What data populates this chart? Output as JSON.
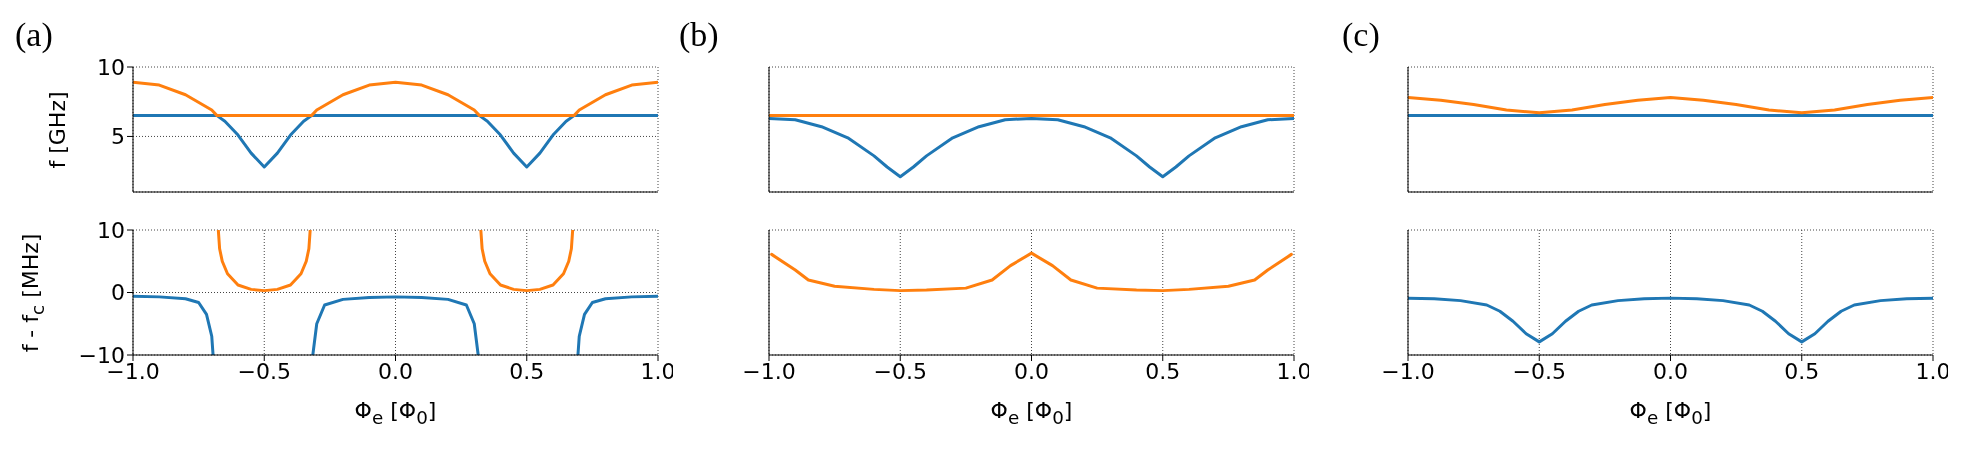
{
  "chart_data": [
    {
      "type": "line",
      "title": "(a)",
      "ylabel": "f [GHz]",
      "x": [
        -1,
        -0.9,
        -0.8,
        -0.7,
        -0.68,
        -0.65,
        -0.6,
        -0.55,
        -0.5,
        -0.45,
        -0.4,
        -0.35,
        -0.32,
        -0.3,
        -0.2,
        -0.1,
        0,
        0.1,
        0.2,
        0.3,
        0.32,
        0.35,
        0.4,
        0.45,
        0.5,
        0.55,
        0.6,
        0.65,
        0.68,
        0.7,
        0.8,
        0.9,
        1
      ],
      "series": [
        {
          "color": "#1f77b4",
          "values": [
            6.5,
            6.5,
            6.5,
            6.5,
            6.5,
            6.1,
            5.1,
            3.8,
            2.8,
            3.8,
            5.1,
            6.1,
            6.5,
            6.5,
            6.5,
            6.5,
            6.5,
            6.5,
            6.5,
            6.5,
            6.5,
            6.1,
            5.1,
            3.8,
            2.8,
            3.8,
            5.1,
            6.1,
            6.5,
            6.5,
            6.5,
            6.5,
            6.5
          ]
        },
        {
          "color": "#ff7f0e",
          "values": [
            8.9,
            8.7,
            8.0,
            6.9,
            6.5,
            6.5,
            6.5,
            6.5,
            6.5,
            6.5,
            6.5,
            6.5,
            6.5,
            6.9,
            8.0,
            8.7,
            8.9,
            8.7,
            8.0,
            6.9,
            6.5,
            6.5,
            6.5,
            6.5,
            6.5,
            6.5,
            6.5,
            6.5,
            6.5,
            6.9,
            8.0,
            8.7,
            8.9
          ]
        }
      ],
      "xlim": [
        -1,
        1
      ],
      "xticks": [
        -1,
        -0.5,
        0,
        0.5,
        1
      ],
      "ylim": [
        1,
        10
      ],
      "yticks": [
        5,
        10
      ],
      "grid": true,
      "tick_labels": "y"
    },
    {
      "type": "line",
      "title": "(b)",
      "x": [
        -1,
        -0.9,
        -0.8,
        -0.7,
        -0.6,
        -0.55,
        -0.5,
        -0.45,
        -0.4,
        -0.3,
        -0.2,
        -0.1,
        0,
        0.1,
        0.2,
        0.3,
        0.4,
        0.45,
        0.5,
        0.55,
        0.6,
        0.7,
        0.8,
        0.9,
        1
      ],
      "series": [
        {
          "color": "#1f77b4",
          "values": [
            6.3,
            6.2,
            5.7,
            4.9,
            3.6,
            2.8,
            2.1,
            2.8,
            3.6,
            4.9,
            5.7,
            6.2,
            6.3,
            6.2,
            5.7,
            4.9,
            3.6,
            2.8,
            2.1,
            2.8,
            3.6,
            4.9,
            5.7,
            6.2,
            6.3
          ]
        },
        {
          "color": "#ff7f0e",
          "x": [
            -1,
            1
          ],
          "values": [
            6.5,
            6.5
          ]
        }
      ],
      "xlim": [
        -1,
        1
      ],
      "xticks": [
        -1,
        -0.5,
        0,
        0.5,
        1
      ],
      "ylim": [
        1,
        10
      ],
      "yticks": [
        5,
        10
      ],
      "grid": true,
      "tick_labels": false
    },
    {
      "type": "line",
      "title": "(c)",
      "x": [
        -1,
        -0.875,
        -0.75,
        -0.625,
        -0.5,
        -0.375,
        -0.25,
        -0.125,
        0,
        0.125,
        0.25,
        0.375,
        0.5,
        0.625,
        0.75,
        0.875,
        1
      ],
      "series": [
        {
          "color": "#1f77b4",
          "x": [
            -1,
            1
          ],
          "values": [
            6.5,
            6.5
          ]
        },
        {
          "color": "#ff7f0e",
          "values": [
            7.8,
            7.6,
            7.3,
            6.9,
            6.7,
            6.9,
            7.3,
            7.6,
            7.8,
            7.6,
            7.3,
            6.9,
            6.7,
            6.9,
            7.3,
            7.6,
            7.8
          ]
        }
      ],
      "xlim": [
        -1,
        1
      ],
      "xticks": [
        -1,
        -0.5,
        0,
        0.5,
        1
      ],
      "ylim": [
        1,
        10
      ],
      "yticks": [
        5,
        10
      ],
      "grid": true,
      "tick_labels": false
    },
    {
      "type": "line",
      "ylabel": "f - f$_{c}$ [MHz]",
      "xlabel": "Φ$_{e}$ [Φ$_{0}$]",
      "series": [
        {
          "color": "#1f77b4",
          "x": [
            -1,
            -0.9,
            -0.8,
            -0.75,
            -0.72,
            -0.7,
            -0.695,
            -0.5,
            -0.315,
            -0.3,
            -0.27,
            -0.2,
            -0.1,
            0,
            0.1,
            0.2,
            0.27,
            0.3,
            0.315,
            0.5,
            0.695,
            0.7,
            0.72,
            0.75,
            0.8,
            0.9,
            1
          ],
          "values": [
            -0.6,
            -0.7,
            -1.0,
            -1.6,
            -3.5,
            -7,
            -10,
            null,
            -10,
            -5,
            -2,
            -1.1,
            -0.8,
            -0.7,
            -0.8,
            -1.1,
            -2,
            -5,
            -10,
            null,
            -10,
            -7,
            -3.5,
            -1.6,
            -1.0,
            -0.7,
            -0.6
          ]
        },
        {
          "color": "#ff7f0e",
          "x": [
            -0.675,
            -0.67,
            -0.66,
            -0.64,
            -0.6,
            -0.55,
            -0.5,
            -0.45,
            -0.4,
            -0.36,
            -0.34,
            -0.33,
            -0.325,
            0,
            0.325,
            0.33,
            0.34,
            0.36,
            0.4,
            0.45,
            0.5,
            0.55,
            0.6,
            0.64,
            0.66,
            0.67,
            0.675
          ],
          "values": [
            10,
            7,
            5,
            3,
            1.2,
            0.5,
            0.3,
            0.5,
            1.2,
            3,
            5,
            7,
            10,
            null,
            10,
            7,
            5,
            3,
            1.2,
            0.5,
            0.3,
            0.5,
            1.2,
            3,
            5,
            7,
            10
          ]
        }
      ],
      "xlim": [
        -1,
        1
      ],
      "xticks": [
        {
          "value": -1,
          "label": "−1.0"
        },
        {
          "value": -0.5,
          "label": "−0.5"
        },
        {
          "value": 0,
          "label": "0.0"
        },
        0.5,
        {
          "value": 1,
          "label": "1.0"
        }
      ],
      "ylim": [
        -10,
        10
      ],
      "yticks": [
        {
          "value": -10,
          "label": "−10"
        },
        0,
        10
      ],
      "grid": true
    },
    {
      "type": "line",
      "xlabel": "Φ$_{e}$ [Φ$_{0}$]",
      "series": [
        {
          "color": "#ff7f0e",
          "x": [
            -0.99,
            -0.9,
            -0.85,
            -0.75,
            -0.6,
            -0.5,
            -0.4,
            -0.25,
            -0.15,
            -0.08,
            0,
            0.08,
            0.15,
            0.25,
            0.4,
            0.5,
            0.6,
            0.75,
            0.85,
            0.9,
            0.99
          ],
          "values": [
            6.1,
            3.6,
            2.0,
            1.0,
            0.5,
            0.3,
            0.4,
            0.7,
            2.0,
            4.3,
            6.3,
            4.3,
            2.0,
            0.7,
            0.4,
            0.3,
            0.5,
            1.0,
            2.0,
            3.6,
            6.1
          ]
        }
      ],
      "xlim": [
        -1,
        1
      ],
      "xticks": [
        {
          "value": -1,
          "label": "−1.0"
        },
        {
          "value": -0.5,
          "label": "−0.5"
        },
        {
          "value": 0,
          "label": "0.0"
        },
        0.5,
        {
          "value": 1,
          "label": "1.0"
        }
      ],
      "ylim": [
        -10,
        10
      ],
      "yticks": [
        -10,
        0,
        10
      ],
      "grid": true,
      "tick_labels": "x"
    },
    {
      "type": "line",
      "xlabel": "Φ$_{e}$ [Φ$_{0}$]",
      "series": [
        {
          "color": "#1f77b4",
          "x": [
            -1,
            -0.9,
            -0.8,
            -0.7,
            -0.65,
            -0.6,
            -0.55,
            -0.5,
            -0.45,
            -0.4,
            -0.35,
            -0.3,
            -0.2,
            -0.1,
            0,
            0.1,
            0.2,
            0.3,
            0.35,
            0.4,
            0.45,
            0.5,
            0.55,
            0.6,
            0.65,
            0.7,
            0.8,
            0.9,
            1
          ],
          "values": [
            -0.9,
            -1.0,
            -1.3,
            -2.0,
            -3.0,
            -4.6,
            -6.6,
            -7.9,
            -6.6,
            -4.6,
            -3.0,
            -2.0,
            -1.3,
            -1.0,
            -0.9,
            -1.0,
            -1.3,
            -2.0,
            -3.0,
            -4.6,
            -6.6,
            -7.9,
            -6.6,
            -4.6,
            -3.0,
            -2.0,
            -1.3,
            -1.0,
            -0.9
          ]
        }
      ],
      "xlim": [
        -1,
        1
      ],
      "xticks": [
        {
          "value": -1,
          "label": "−1.0"
        },
        {
          "value": -0.5,
          "label": "−0.5"
        },
        {
          "value": 0,
          "label": "0.0"
        },
        0.5,
        {
          "value": 1,
          "label": "1.0"
        }
      ],
      "ylim": [
        -10,
        10
      ],
      "yticks": [
        -10,
        0,
        10
      ],
      "grid": true,
      "tick_labels": "x"
    }
  ]
}
